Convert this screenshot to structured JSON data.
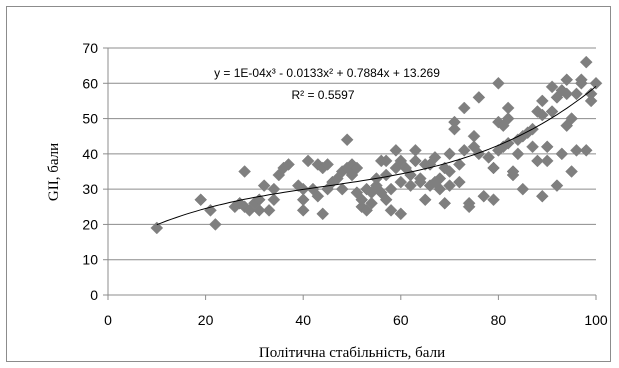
{
  "chart_data": {
    "type": "scatter",
    "xlabel": "Політична стабільність, бали",
    "ylabel": "GII, бали",
    "xlim": [
      0,
      100
    ],
    "ylim": [
      0,
      70
    ],
    "xticks": [
      0,
      20,
      40,
      60,
      80,
      100
    ],
    "yticks": [
      0,
      10,
      20,
      30,
      40,
      50,
      60,
      70
    ],
    "grid": "horizontal",
    "marker": "diamond",
    "marker_color": "#7f7f7f",
    "trendline": {
      "type": "polynomial",
      "coefficients": [
        0.0001,
        -0.0133,
        0.7884,
        13.269
      ],
      "equation": "y = 1E-04x³ - 0.0133x² + 0.7884x + 13.269",
      "r2": "R² = 0.5597",
      "color": "#000000"
    },
    "points": [
      [
        10,
        19
      ],
      [
        19,
        27
      ],
      [
        21,
        24
      ],
      [
        22,
        20
      ],
      [
        26,
        25
      ],
      [
        27,
        26
      ],
      [
        28,
        35
      ],
      [
        28,
        25
      ],
      [
        29,
        24
      ],
      [
        30,
        26
      ],
      [
        31,
        27
      ],
      [
        31,
        24
      ],
      [
        32,
        31
      ],
      [
        33,
        24
      ],
      [
        34,
        30
      ],
      [
        34,
        27
      ],
      [
        35,
        34
      ],
      [
        36,
        36
      ],
      [
        37,
        37
      ],
      [
        39,
        31
      ],
      [
        40,
        30
      ],
      [
        40,
        27
      ],
      [
        40,
        24
      ],
      [
        41,
        38
      ],
      [
        42,
        30
      ],
      [
        43,
        28
      ],
      [
        43,
        37
      ],
      [
        44,
        36
      ],
      [
        44,
        23
      ],
      [
        45,
        37
      ],
      [
        45,
        30
      ],
      [
        46,
        32
      ],
      [
        47,
        33
      ],
      [
        48,
        30
      ],
      [
        48,
        35
      ],
      [
        49,
        36
      ],
      [
        49,
        44
      ],
      [
        50,
        37
      ],
      [
        50,
        34
      ],
      [
        51,
        36
      ],
      [
        51,
        29
      ],
      [
        52,
        25
      ],
      [
        52,
        27
      ],
      [
        53,
        24
      ],
      [
        53,
        30
      ],
      [
        54,
        29
      ],
      [
        54,
        26
      ],
      [
        55,
        31
      ],
      [
        55,
        33
      ],
      [
        56,
        38
      ],
      [
        56,
        29
      ],
      [
        57,
        38
      ],
      [
        57,
        34
      ],
      [
        57,
        27
      ],
      [
        58,
        30
      ],
      [
        58,
        24
      ],
      [
        59,
        41
      ],
      [
        59,
        36
      ],
      [
        60,
        38
      ],
      [
        60,
        32
      ],
      [
        60,
        23
      ],
      [
        61,
        36
      ],
      [
        62,
        34
      ],
      [
        62,
        31
      ],
      [
        63,
        41
      ],
      [
        63,
        38
      ],
      [
        64,
        33
      ],
      [
        64,
        32
      ],
      [
        65,
        37
      ],
      [
        65,
        27
      ],
      [
        66,
        31
      ],
      [
        66,
        37
      ],
      [
        67,
        32
      ],
      [
        67,
        39
      ],
      [
        68,
        30
      ],
      [
        68,
        33
      ],
      [
        69,
        36
      ],
      [
        69,
        26
      ],
      [
        70,
        35
      ],
      [
        70,
        31
      ],
      [
        70,
        40
      ],
      [
        71,
        49
      ],
      [
        71,
        47
      ],
      [
        72,
        37
      ],
      [
        72,
        32
      ],
      [
        73,
        41
      ],
      [
        73,
        53
      ],
      [
        74,
        26
      ],
      [
        74,
        25
      ],
      [
        75,
        45
      ],
      [
        75,
        42
      ],
      [
        76,
        56
      ],
      [
        76,
        40
      ],
      [
        77,
        28
      ],
      [
        78,
        39
      ],
      [
        79,
        27
      ],
      [
        79,
        36
      ],
      [
        80,
        41
      ],
      [
        80,
        49
      ],
      [
        80,
        60
      ],
      [
        81,
        42
      ],
      [
        81,
        48
      ],
      [
        82,
        50
      ],
      [
        82,
        53
      ],
      [
        82,
        43
      ],
      [
        83,
        34
      ],
      [
        83,
        35
      ],
      [
        84,
        40
      ],
      [
        84,
        44
      ],
      [
        85,
        30
      ],
      [
        85,
        45
      ],
      [
        86,
        46
      ],
      [
        87,
        47
      ],
      [
        87,
        42
      ],
      [
        88,
        52
      ],
      [
        88,
        38
      ],
      [
        89,
        55
      ],
      [
        89,
        28
      ],
      [
        89,
        51
      ],
      [
        90,
        38
      ],
      [
        90,
        42
      ],
      [
        91,
        52
      ],
      [
        91,
        59
      ],
      [
        92,
        56
      ],
      [
        92,
        31
      ],
      [
        93,
        58
      ],
      [
        93,
        40
      ],
      [
        94,
        57
      ],
      [
        94,
        61
      ],
      [
        94,
        48
      ],
      [
        95,
        35
      ],
      [
        95,
        50
      ],
      [
        96,
        57
      ],
      [
        96,
        41
      ],
      [
        97,
        60
      ],
      [
        97,
        61
      ],
      [
        98,
        66
      ],
      [
        98,
        41
      ],
      [
        99,
        57
      ],
      [
        99,
        55
      ],
      [
        100,
        60
      ]
    ]
  }
}
